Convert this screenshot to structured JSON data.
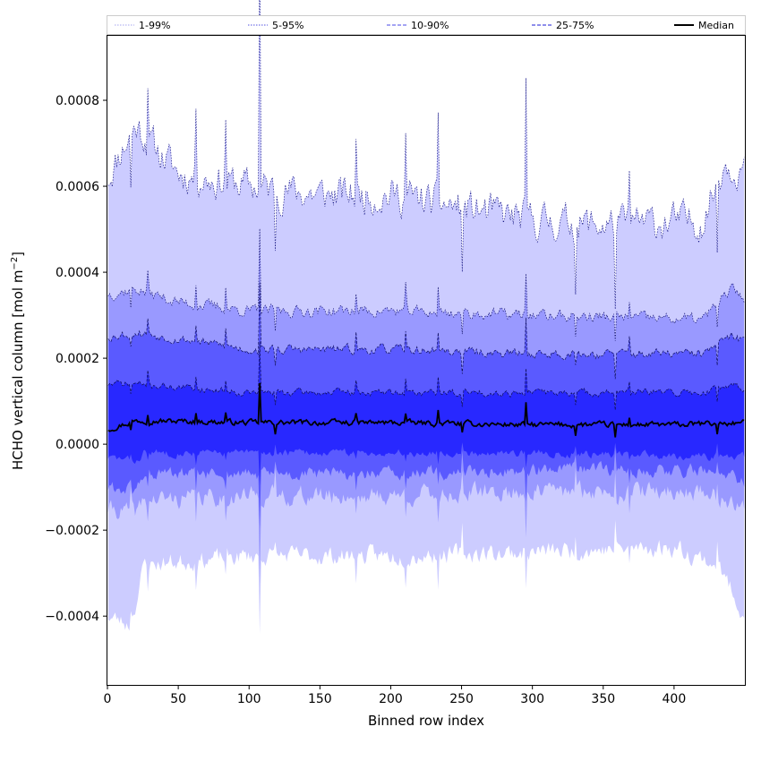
{
  "chart_data": {
    "type": "area",
    "title": "",
    "xlabel": "Binned row index",
    "ylabel_main": "HCHO vertical column [mol m",
    "ylabel_exp": "−2",
    "ylabel_close": "]",
    "xlim": [
      0,
      450
    ],
    "ylim": [
      -0.00056,
      0.00095
    ],
    "x_ticks": [
      0,
      50,
      100,
      150,
      200,
      250,
      300,
      350,
      400
    ],
    "x_tick_labels": [
      "0",
      "50",
      "100",
      "150",
      "200",
      "250",
      "300",
      "350",
      "400"
    ],
    "y_ticks": [
      -0.0004,
      -0.0002,
      0.0,
      0.0002,
      0.0004,
      0.0006,
      0.0008
    ],
    "y_tick_labels": [
      "−0.0004",
      "−0.0002",
      "0.0000",
      "0.0002",
      "0.0004",
      "0.0006",
      "0.0008"
    ],
    "x_count": 450,
    "legend": {
      "placement": "top",
      "entries": [
        {
          "label": "1-99%",
          "color": "#b7b7f2",
          "style": "dotted"
        },
        {
          "label": "5-95%",
          "color": "#7575e6",
          "style": "dotted"
        },
        {
          "label": "10-90%",
          "color": "#6d6dec",
          "style": "dashed"
        },
        {
          "label": "25-75%",
          "color": "#4a4adf",
          "style": "dashed"
        },
        {
          "label": "Median",
          "color": "#000000",
          "style": "solid"
        }
      ]
    },
    "series": [
      {
        "name": "1-99% upper",
        "base": [
          [
            0,
            0.00062
          ],
          [
            10,
            0.00069
          ],
          [
            20,
            0.00074
          ],
          [
            30,
            0.0007
          ],
          [
            50,
            0.00063
          ],
          [
            100,
            0.0006
          ],
          [
            150,
            0.00058
          ],
          [
            200,
            0.00058
          ],
          [
            250,
            0.00055
          ],
          [
            300,
            0.00052
          ],
          [
            350,
            0.00051
          ],
          [
            420,
            0.00052
          ],
          [
            435,
            0.00066
          ],
          [
            450,
            0.00064
          ]
        ],
        "noise": 4.2e-05,
        "seed": 11
      },
      {
        "name": "1-99% lower",
        "base": [
          [
            0,
            -0.0004
          ],
          [
            15,
            -0.00042
          ],
          [
            22,
            -0.00034
          ],
          [
            25,
            -0.00028
          ],
          [
            100,
            -0.00026
          ],
          [
            200,
            -0.00026
          ],
          [
            300,
            -0.00025
          ],
          [
            400,
            -0.00024
          ],
          [
            430,
            -0.00028
          ],
          [
            450,
            -0.0004
          ]
        ],
        "noise": 2.2e-05,
        "seed": 23
      },
      {
        "name": "5-95% upper",
        "base": [
          [
            0,
            0.00035
          ],
          [
            20,
            0.00036
          ],
          [
            50,
            0.00033
          ],
          [
            100,
            0.00031
          ],
          [
            200,
            0.00031
          ],
          [
            300,
            0.0003
          ],
          [
            420,
            0.00029
          ],
          [
            440,
            0.00036
          ],
          [
            450,
            0.00034
          ]
        ],
        "noise": 1.4e-05,
        "seed": 37
      },
      {
        "name": "5-95% lower",
        "base": [
          [
            0,
            -0.00015
          ],
          [
            20,
            -0.00016
          ],
          [
            25,
            -0.00013
          ],
          [
            100,
            -0.00012
          ],
          [
            200,
            -0.00012
          ],
          [
            300,
            -0.00011
          ],
          [
            420,
            -0.00011
          ],
          [
            450,
            -0.00015
          ]
        ],
        "noise": 2.2e-05,
        "seed": 41
      },
      {
        "name": "10-90% upper",
        "base": [
          [
            0,
            0.00025
          ],
          [
            20,
            0.00026
          ],
          [
            100,
            0.00022
          ],
          [
            200,
            0.00022
          ],
          [
            300,
            0.00021
          ],
          [
            420,
            0.00021
          ],
          [
            440,
            0.00025
          ],
          [
            450,
            0.00024
          ]
        ],
        "noise": 1.1e-05,
        "seed": 53
      },
      {
        "name": "10-90% lower",
        "base": [
          [
            0,
            -0.0001
          ],
          [
            20,
            -0.00011
          ],
          [
            25,
            -7e-05
          ],
          [
            100,
            -7e-05
          ],
          [
            200,
            -7e-05
          ],
          [
            300,
            -6e-05
          ],
          [
            420,
            -6e-05
          ],
          [
            450,
            -9e-05
          ]
        ],
        "noise": 1.6e-05,
        "seed": 61
      },
      {
        "name": "25-75% upper",
        "base": [
          [
            0,
            0.00014
          ],
          [
            20,
            0.00014
          ],
          [
            100,
            0.00012
          ],
          [
            200,
            0.00012
          ],
          [
            300,
            0.00012
          ],
          [
            420,
            0.00012
          ],
          [
            440,
            0.00014
          ],
          [
            450,
            0.00013
          ]
        ],
        "noise": 8.5e-06,
        "seed": 71
      },
      {
        "name": "25-75% lower",
        "base": [
          [
            0,
            -3e-05
          ],
          [
            20,
            -4e-05
          ],
          [
            25,
            -2e-05
          ],
          [
            100,
            -2e-05
          ],
          [
            200,
            -2e-05
          ],
          [
            300,
            -2e-05
          ],
          [
            450,
            -3e-05
          ]
        ],
        "noise": 9e-06,
        "seed": 83
      },
      {
        "name": "Median",
        "base": [
          [
            0,
            3.5e-05
          ],
          [
            20,
            5.5e-05
          ],
          [
            100,
            5e-05
          ],
          [
            200,
            5e-05
          ],
          [
            300,
            4.5e-05
          ],
          [
            400,
            4.5e-05
          ],
          [
            450,
            5e-05
          ]
        ],
        "noise": 6.5e-06,
        "seed": 97
      }
    ],
    "spikes": [
      [
        16,
        -0.7
      ],
      [
        28,
        0.9
      ],
      [
        62,
        1.0
      ],
      [
        83,
        0.9
      ],
      [
        107,
        3.5
      ],
      [
        118,
        -0.8
      ],
      [
        175,
        0.8
      ],
      [
        210,
        0.9
      ],
      [
        233,
        1.1
      ],
      [
        250,
        -1.0
      ],
      [
        295,
        1.8
      ],
      [
        330,
        -0.8
      ],
      [
        358,
        -1.2
      ],
      [
        368,
        0.8
      ],
      [
        430,
        -1.0
      ]
    ],
    "fill_colors": {
      "outer": "#ccccff",
      "band5": "#9999ff",
      "band10": "#5a5aff",
      "band25": "#2828ff"
    }
  }
}
